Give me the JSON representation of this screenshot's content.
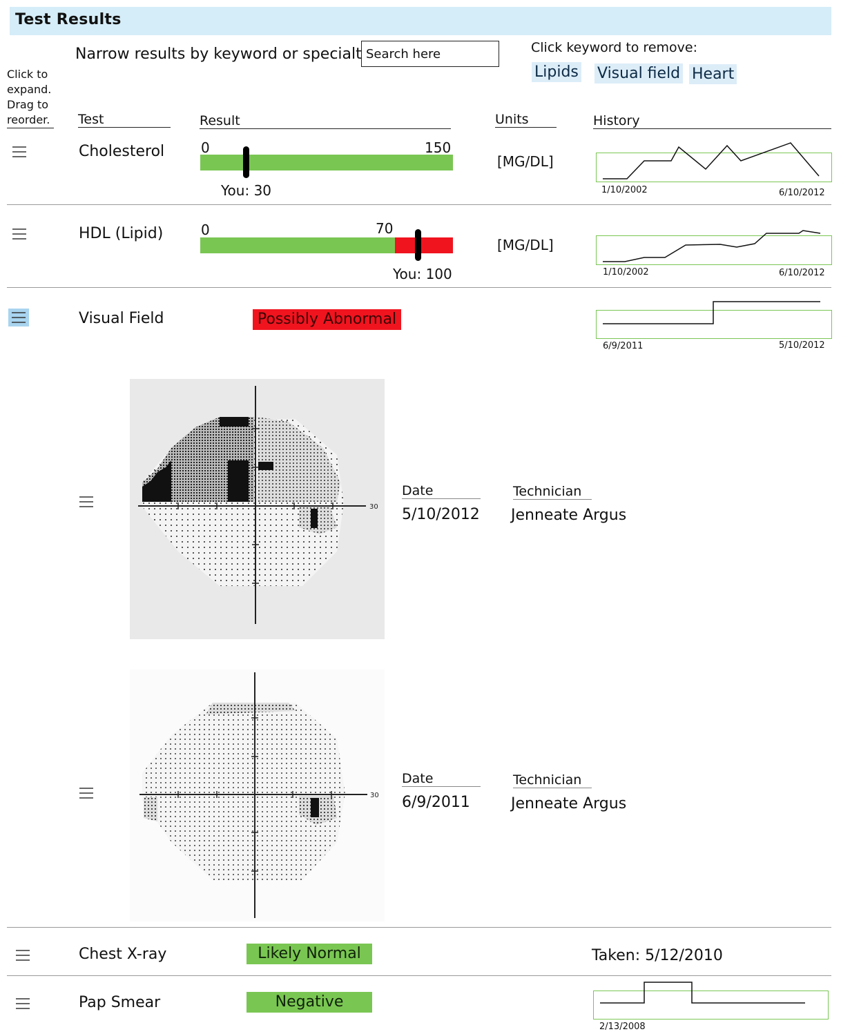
{
  "header": {
    "title": "Test Results"
  },
  "search": {
    "label": "Narrow results by keyword or specialty",
    "placeholder": "Search here"
  },
  "keywords": {
    "label": "Click keyword to remove:",
    "items": [
      "Lipids",
      "Visual field",
      "Heart"
    ]
  },
  "sidebar_hint": {
    "line1": "Click to",
    "line2": "expand.",
    "line3": "Drag to",
    "line4": "reorder."
  },
  "columns": {
    "test": "Test",
    "result": "Result",
    "units": "Units",
    "history": "History"
  },
  "rows": [
    {
      "name": "Cholesterol",
      "range_min": "0",
      "range_max": "150",
      "you": "You: 30",
      "units": "[MG/DL]",
      "history_start": "1/10/2002",
      "history_end": "6/10/2012",
      "bar_fraction_normal": 1.0,
      "marker_fraction": 0.18
    },
    {
      "name": "HDL (Lipid)",
      "range_min": "0",
      "range_max": "70",
      "you": "You: 100",
      "units": "[MG/DL]",
      "history_start": "1/10/2002",
      "history_end": "6/10/2012",
      "bar_fraction_normal": 0.77,
      "marker_fraction": 0.86
    },
    {
      "name": "Visual Field",
      "status": "Possibly Abnormal",
      "history_start": "6/9/2011",
      "history_end": "5/10/2012"
    },
    {
      "name": "Chest X-ray",
      "status": "Likely Normal",
      "taken": "Taken: 5/12/2010"
    },
    {
      "name": "Pap Smear",
      "status": "Negative",
      "history_start": "2/13/2008"
    }
  ],
  "visual_field_details": [
    {
      "date_label": "Date",
      "date": "5/10/2012",
      "tech_label": "Technician",
      "technician": "Jenneate Argus",
      "axis_label": "30"
    },
    {
      "date_label": "Date",
      "date": "6/9/2011",
      "tech_label": "Technician",
      "technician": "Jenneate Argus",
      "axis_label": "30"
    }
  ],
  "colors": {
    "header_bg": "#d5edf8",
    "normal": "#7ac653",
    "abnormal": "#f0141f",
    "keyword_bg": "#dcedf8"
  },
  "icons": {
    "drag": "drag-handle-icon"
  }
}
